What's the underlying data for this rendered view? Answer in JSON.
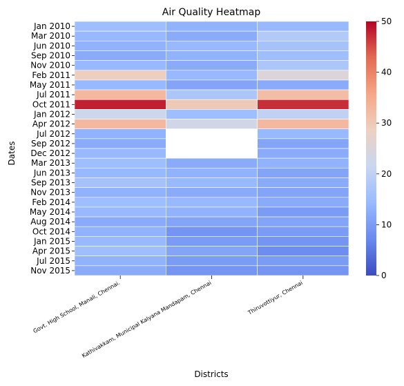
{
  "chart_data": {
    "type": "heatmap",
    "title": "Air Quality Heatmap",
    "xlabel": "Districts",
    "ylabel": "Dates",
    "colormap": "coolwarm",
    "colormap_stops": [
      "#3b4cc0",
      "#6788ee",
      "#9abbff",
      "#c9d7f0",
      "#edd1c2",
      "#f7a889",
      "#e26952",
      "#b40426"
    ],
    "missing_color": "#ffffff",
    "vmin": 0,
    "vmax": 50,
    "colorbar_ticks": [
      "0",
      "10",
      "20",
      "30",
      "40",
      "50"
    ],
    "columns": [
      "Govt. High School, Manali, Chennai.",
      "Kathivakkam, Municipal Kalyana Mandapam, Chennai",
      "Thiruvottiyur,  Chennai"
    ],
    "y_ticks": [
      "Jan 2010",
      "Mar 2010",
      "Jun 2010",
      "Sep 2010",
      "Nov 2010",
      "Feb 2011",
      "May 2011",
      "Jul 2011",
      "Oct 2011",
      "Jan 2012",
      "Apr 2012",
      "Jul 2012",
      "Sep 2012",
      "Dec 2012",
      "Mar 2013",
      "Jun 2013",
      "Sep 2013",
      "Nov 2013",
      "Feb 2014",
      "May 2014",
      "Aug 2014",
      "Oct 2014",
      "Jan 2015",
      "Apr 2015",
      "Jul 2015",
      "Nov 2015"
    ],
    "rows": [
      {
        "date": "Jan 2010",
        "values": [
          15,
          13,
          14
        ]
      },
      {
        "date": "Mar 2010",
        "values": [
          14,
          12,
          18
        ]
      },
      {
        "date": "Jun 2010",
        "values": [
          13,
          14,
          16
        ]
      },
      {
        "date": "Sep 2010",
        "values": [
          12,
          13,
          15
        ]
      },
      {
        "date": "Nov 2010",
        "values": [
          14,
          12,
          17
        ]
      },
      {
        "date": "Feb 2011",
        "values": [
          29,
          14,
          25
        ]
      },
      {
        "date": "May 2011",
        "values": [
          14,
          11,
          12
        ]
      },
      {
        "date": "Jul 2011",
        "values": [
          33,
          17,
          32
        ]
      },
      {
        "date": "Oct 2011",
        "values": [
          48,
          30,
          47
        ]
      },
      {
        "date": "Jan 2012",
        "values": [
          22,
          15,
          20
        ]
      },
      {
        "date": "Apr 2012",
        "values": [
          33,
          23,
          33
        ]
      },
      {
        "date": "Jul 2012",
        "values": [
          13,
          null,
          14
        ]
      },
      {
        "date": "Sep 2012",
        "values": [
          12,
          null,
          11
        ]
      },
      {
        "date": "Dec 2012",
        "values": [
          14,
          null,
          12
        ]
      },
      {
        "date": "Mar 2013",
        "values": [
          15,
          12,
          13
        ]
      },
      {
        "date": "Jun 2013",
        "values": [
          14,
          13,
          11
        ]
      },
      {
        "date": "Sep 2013",
        "values": [
          16,
          14,
          12
        ]
      },
      {
        "date": "Nov 2013",
        "values": [
          13,
          12,
          11
        ]
      },
      {
        "date": "Feb 2014",
        "values": [
          15,
          14,
          12
        ]
      },
      {
        "date": "May 2014",
        "values": [
          14,
          13,
          10
        ]
      },
      {
        "date": "Aug 2014",
        "values": [
          12,
          11,
          11
        ]
      },
      {
        "date": "Oct 2014",
        "values": [
          13,
          9,
          10
        ]
      },
      {
        "date": "Jan 2015",
        "values": [
          14,
          10,
          9
        ]
      },
      {
        "date": "Apr 2015",
        "values": [
          15,
          11,
          8
        ]
      },
      {
        "date": "Jul 2015",
        "values": [
          13,
          10,
          10
        ]
      },
      {
        "date": "Nov 2015",
        "values": [
          12,
          9,
          9
        ]
      }
    ]
  }
}
